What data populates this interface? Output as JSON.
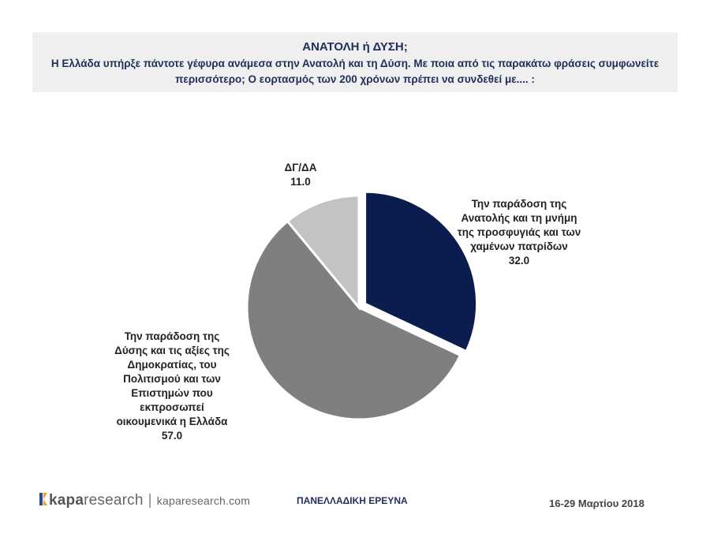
{
  "header": {
    "title": "ΑΝΑΤΟΛΗ ή ΔΥΣΗ;",
    "question_line1": "Η Ελλάδα υπήρξε πάντοτε γέφυρα ανάμεσα στην Ανατολή και τη Δύση. Με ποια από τις παρακάτω φράσεις συμφωνείτε",
    "question_line2": "περισσότερο; Ο εορτασμός των 200 χρόνων πρέπει να συνδεθεί με.... :"
  },
  "chart_data": {
    "type": "pie",
    "start_angle_deg": 0,
    "direction": "clockwise",
    "slices": [
      {
        "label_lines": [
          "Την παράδοση της",
          "Ανατολής και τη μνήμη",
          "της προσφυγιάς και των",
          "χαμένων πατρίδων"
        ],
        "value": 32.0,
        "value_label": "32.0",
        "color": "#0b1c4e",
        "exploded": true
      },
      {
        "label_lines": [
          "Την παράδοση της",
          "Δύσης και τις αξίες της",
          "Δημοκρατίας, του",
          "Πολιτισμού και των",
          "Επιστημών που",
          "εκπροσωπεί",
          "οικουμενικά η Ελλάδα"
        ],
        "value": 57.0,
        "value_label": "57.0",
        "color": "#7f7f7f",
        "exploded": false
      },
      {
        "label_lines": [
          "ΔΓ/ΔΑ"
        ],
        "value": 11.0,
        "value_label": "11.0",
        "color": "#c3c3c3",
        "exploded": false
      }
    ]
  },
  "footer": {
    "logo_kapa": "kapa",
    "logo_research": "research",
    "separator": "|",
    "website": "kaparesearch.com",
    "survey_label": "ΠΑΝΕΛΛΑΔΙΚΗ ΕΡΕΥΝΑ",
    "date": "16-29 Μαρτίου 2018"
  }
}
